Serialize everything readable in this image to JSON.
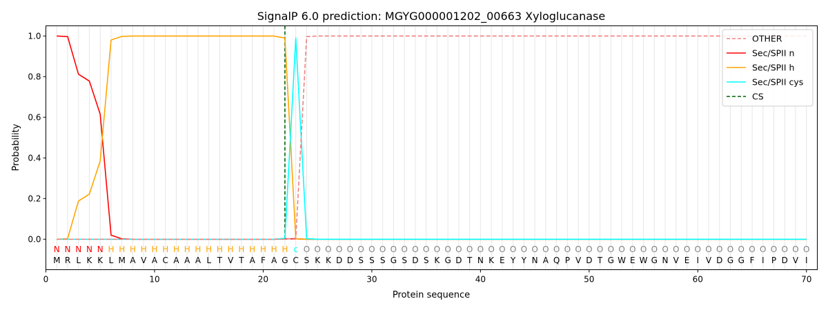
{
  "chart_data": {
    "type": "line",
    "title": "SignalP 6.0 prediction: MGYG000001202_00663 Xyloglucanase",
    "xlabel": "Protein sequence",
    "ylabel": "Probability",
    "xlim": [
      0,
      71
    ],
    "ylim": [
      -0.15,
      1.05
    ],
    "x_ticks": [
      0,
      10,
      20,
      30,
      40,
      50,
      60,
      70
    ],
    "y_ticks": [
      0.0,
      0.2,
      0.4,
      0.6,
      0.8,
      1.0
    ],
    "x_tick_labels": [
      "0",
      "10",
      "20",
      "30",
      "40",
      "50",
      "60",
      "70"
    ],
    "y_tick_labels": [
      "0.0",
      "0.2",
      "0.4",
      "0.6",
      "0.8",
      "1.0"
    ],
    "grid": "vertical lines at each residue position",
    "legend_position": "top-right",
    "sequence": [
      "M",
      "R",
      "L",
      "K",
      "K",
      "L",
      "M",
      "A",
      "V",
      "A",
      "C",
      "A",
      "A",
      "A",
      "L",
      "T",
      "V",
      "T",
      "A",
      "F",
      "A",
      "G",
      "C",
      "S",
      "K",
      "K",
      "D",
      "D",
      "S",
      "S",
      "S",
      "G",
      "S",
      "D",
      "S",
      "K",
      "G",
      "D",
      "T",
      "N",
      "K",
      "E",
      "Y",
      "Y",
      "N",
      "A",
      "Q",
      "P",
      "V",
      "D",
      "T",
      "G",
      "W",
      "E",
      "W",
      "G",
      "N",
      "V",
      "E",
      "I",
      "V",
      "D",
      "G",
      "G",
      "F",
      "I",
      "P",
      "D",
      "V",
      "I"
    ],
    "region_labels": [
      "N",
      "N",
      "N",
      "N",
      "N",
      "H",
      "H",
      "H",
      "H",
      "H",
      "H",
      "H",
      "H",
      "H",
      "H",
      "H",
      "H",
      "H",
      "H",
      "H",
      "H",
      "H",
      "c",
      "O",
      "O",
      "O",
      "O",
      "O",
      "O",
      "O",
      "O",
      "O",
      "O",
      "O",
      "O",
      "O",
      "O",
      "O",
      "O",
      "O",
      "O",
      "O",
      "O",
      "O",
      "O",
      "O",
      "O",
      "O",
      "O",
      "O",
      "O",
      "O",
      "O",
      "O",
      "O",
      "O",
      "O",
      "O",
      "O",
      "O",
      "O",
      "O",
      "O",
      "O",
      "O",
      "O",
      "O",
      "O",
      "O",
      "O"
    ],
    "region_colors": {
      "N": "#ff0000",
      "H": "#ffa500",
      "c": "#00ffff",
      "O": "#808080"
    },
    "cleavage_site_x": 22,
    "series": [
      {
        "name": "OTHER",
        "color": "#f08080",
        "dash": true,
        "values": [
          0,
          0,
          0,
          0,
          0,
          0,
          0,
          0,
          0,
          0,
          0,
          0,
          0,
          0,
          0,
          0,
          0,
          0,
          0,
          0,
          0,
          0,
          0.005,
          0.997,
          1,
          1,
          1,
          1,
          1,
          1,
          1,
          1,
          1,
          1,
          1,
          1,
          1,
          1,
          1,
          1,
          1,
          1,
          1,
          1,
          1,
          1,
          1,
          1,
          1,
          1,
          1,
          1,
          1,
          1,
          1,
          1,
          1,
          1,
          1,
          1,
          1,
          1,
          1,
          1,
          1,
          1,
          1,
          1,
          1,
          1
        ]
      },
      {
        "name": "Sec/SPII n",
        "color": "#ff0000",
        "dash": false,
        "values": [
          1.0,
          0.997,
          0.812,
          0.778,
          0.615,
          0.02,
          0.002,
          0,
          0,
          0,
          0,
          0,
          0,
          0,
          0,
          0,
          0,
          0,
          0,
          0,
          0,
          0.002,
          0.002,
          0,
          0,
          0,
          0,
          0,
          0,
          0,
          0,
          0,
          0,
          0,
          0,
          0,
          0,
          0,
          0,
          0,
          0,
          0,
          0,
          0,
          0,
          0,
          0,
          0,
          0,
          0,
          0,
          0,
          0,
          0,
          0,
          0,
          0,
          0,
          0,
          0,
          0,
          0,
          0,
          0,
          0,
          0,
          0,
          0,
          0,
          0
        ]
      },
      {
        "name": "Sec/SPII h",
        "color": "#ffa500",
        "dash": false,
        "values": [
          0,
          0.003,
          0.188,
          0.222,
          0.385,
          0.98,
          0.998,
          1,
          1,
          1,
          1,
          1,
          1,
          1,
          1,
          1,
          1,
          1,
          1,
          1,
          1,
          0.99,
          0.002,
          0,
          0,
          0,
          0,
          0,
          0,
          0,
          0,
          0,
          0,
          0,
          0,
          0,
          0,
          0,
          0,
          0,
          0,
          0,
          0,
          0,
          0,
          0,
          0,
          0,
          0,
          0,
          0,
          0,
          0,
          0,
          0,
          0,
          0,
          0,
          0,
          0,
          0,
          0,
          0,
          0,
          0,
          0,
          0,
          0,
          0,
          0
        ]
      },
      {
        "name": "Sec/SPII cys",
        "color": "#00ffff",
        "dash": false,
        "values": [
          0,
          0,
          0,
          0,
          0,
          0,
          0,
          0,
          0,
          0,
          0,
          0,
          0,
          0,
          0,
          0,
          0,
          0,
          0,
          0,
          0,
          0.004,
          0.99,
          0.003,
          0,
          0,
          0,
          0,
          0,
          0,
          0,
          0,
          0,
          0,
          0,
          0,
          0,
          0,
          0,
          0,
          0,
          0,
          0,
          0,
          0,
          0,
          0,
          0,
          0,
          0,
          0,
          0,
          0,
          0,
          0,
          0,
          0,
          0,
          0,
          0,
          0,
          0,
          0,
          0,
          0,
          0,
          0,
          0,
          0,
          0
        ]
      },
      {
        "name": "CS",
        "color": "#006400",
        "dash": true,
        "values": []
      }
    ]
  }
}
